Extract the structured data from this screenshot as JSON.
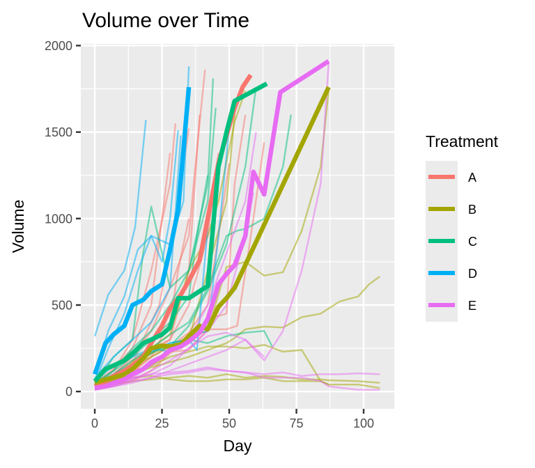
{
  "chart_data": {
    "type": "line",
    "title": "Volume over Time",
    "xlabel": "Day",
    "ylabel": "Volume",
    "xlim": [
      -5.2,
      111.4
    ],
    "ylim": [
      -100,
      2010
    ],
    "x_ticks": [
      0,
      25,
      50,
      75,
      100
    ],
    "x_tick_labels": [
      "0",
      "25",
      "50",
      "75",
      "100"
    ],
    "y_ticks": [
      0,
      500,
      1000,
      1500,
      2000
    ],
    "y_tick_labels": [
      "0",
      "500",
      "1000",
      "1500",
      "2000"
    ],
    "x_minor": [
      12.5,
      37.5,
      62.5,
      87.5
    ],
    "y_minor": [
      250,
      750,
      1250,
      1750
    ],
    "grid": true,
    "background": "#ebebeb",
    "legend": {
      "title": "Treatment",
      "position": "right",
      "entries": [
        {
          "label": "A",
          "color": "#F8766D"
        },
        {
          "label": "B",
          "color": "#A3A500"
        },
        {
          "label": "C",
          "color": "#00BF7D"
        },
        {
          "label": "D",
          "color": "#00B0F6"
        },
        {
          "label": "E",
          "color": "#E76BF3"
        }
      ]
    },
    "mean_series": [
      {
        "name": "A",
        "color": "#F8766D",
        "x": [
          0,
          4,
          7,
          11,
          14,
          18,
          21,
          25,
          28,
          32,
          35,
          39,
          42,
          46,
          49,
          52,
          55,
          58
        ],
        "y": [
          30,
          60,
          90,
          120,
          150,
          200,
          280,
          380,
          480,
          560,
          640,
          760,
          1000,
          1320,
          1480,
          1640,
          1760,
          1830
        ]
      },
      {
        "name": "B",
        "color": "#A3A500",
        "x": [
          0,
          4,
          7,
          11,
          14,
          18,
          21,
          25,
          28,
          32,
          35,
          39,
          42,
          46,
          49,
          52,
          87
        ],
        "y": [
          50,
          70,
          80,
          100,
          130,
          190,
          250,
          265,
          260,
          270,
          320,
          380,
          360,
          490,
          540,
          600,
          1760
        ]
      },
      {
        "name": "C",
        "color": "#00BF7D",
        "x": [
          0,
          4,
          7,
          11,
          14,
          18,
          21,
          25,
          28,
          31,
          35,
          39,
          42,
          46,
          49,
          52,
          64
        ],
        "y": [
          60,
          130,
          150,
          180,
          220,
          280,
          300,
          330,
          370,
          540,
          540,
          580,
          610,
          1300,
          1500,
          1680,
          1780
        ]
      },
      {
        "name": "D",
        "color": "#00B0F6",
        "x": [
          0,
          4,
          7,
          11,
          14,
          18,
          21,
          25,
          28,
          31,
          33,
          35
        ],
        "y": [
          100,
          280,
          330,
          380,
          500,
          530,
          580,
          620,
          820,
          1050,
          1400,
          1760
        ]
      },
      {
        "name": "E",
        "color": "#E76BF3",
        "x": [
          0,
          4,
          7,
          11,
          14,
          18,
          21,
          25,
          28,
          32,
          35,
          39,
          42,
          46,
          49,
          52,
          56,
          59,
          63,
          69,
          87
        ],
        "y": [
          20,
          30,
          50,
          70,
          100,
          130,
          170,
          200,
          240,
          260,
          290,
          340,
          420,
          620,
          680,
          730,
          900,
          1270,
          1140,
          1730,
          1910
        ]
      }
    ],
    "individual_series": [
      {
        "group": "A",
        "x": [
          0,
          7,
          14,
          21,
          28,
          30
        ],
        "y": [
          40,
          120,
          300,
          700,
          1200,
          1550
        ]
      },
      {
        "group": "A",
        "x": [
          0,
          7,
          14,
          18,
          24,
          30,
          35
        ],
        "y": [
          20,
          80,
          160,
          300,
          500,
          1000,
          1520
        ]
      },
      {
        "group": "A",
        "x": [
          0,
          7,
          14,
          21,
          28,
          35,
          38,
          41
        ],
        "y": [
          30,
          100,
          200,
          350,
          600,
          900,
          1400,
          1860
        ]
      },
      {
        "group": "A",
        "x": [
          0,
          7,
          14,
          21,
          25,
          28
        ],
        "y": [
          50,
          130,
          250,
          500,
          1000,
          1380
        ]
      },
      {
        "group": "A",
        "x": [
          0,
          7,
          14,
          21,
          28,
          35,
          42,
          46,
          50
        ],
        "y": [
          20,
          60,
          110,
          200,
          260,
          340,
          500,
          900,
          1320
        ]
      },
      {
        "group": "A",
        "x": [
          0,
          7,
          14,
          21,
          28,
          35,
          42,
          46
        ],
        "y": [
          30,
          90,
          150,
          220,
          300,
          500,
          900,
          1380
        ]
      },
      {
        "group": "A",
        "x": [
          0,
          7,
          14,
          21,
          28,
          35,
          42,
          49,
          53,
          59,
          63
        ],
        "y": [
          20,
          70,
          120,
          150,
          230,
          240,
          360,
          360,
          380,
          1000,
          1440
        ]
      },
      {
        "group": "A",
        "x": [
          0,
          7,
          14,
          21,
          28,
          35,
          39
        ],
        "y": [
          30,
          100,
          180,
          250,
          300,
          700,
          1600
        ]
      },
      {
        "group": "A",
        "x": [
          0,
          7,
          14,
          21,
          28,
          35,
          42,
          49,
          52,
          56
        ],
        "y": [
          10,
          40,
          60,
          120,
          220,
          300,
          420,
          450,
          1200,
          1600
        ]
      },
      {
        "group": "A",
        "x": [
          0,
          7,
          14,
          21,
          28,
          31,
          35
        ],
        "y": [
          20,
          60,
          120,
          200,
          400,
          700,
          1000
        ]
      },
      {
        "group": "B",
        "x": [
          0,
          7,
          14,
          21,
          28,
          35,
          42,
          49,
          56,
          63,
          70,
          77,
          84,
          87
        ],
        "y": [
          40,
          70,
          140,
          220,
          260,
          320,
          350,
          720,
          750,
          670,
          690,
          930,
          1300,
          1740
        ]
      },
      {
        "group": "B",
        "x": [
          0,
          7,
          14,
          21,
          28,
          35,
          42,
          49,
          52,
          56,
          63,
          70,
          77,
          84,
          91,
          98,
          102,
          106
        ],
        "y": [
          30,
          60,
          100,
          140,
          170,
          200,
          240,
          280,
          310,
          360,
          375,
          370,
          430,
          450,
          520,
          550,
          620,
          665
        ]
      },
      {
        "group": "B",
        "x": [
          0,
          7,
          14,
          21,
          28,
          35,
          42,
          49,
          56,
          63,
          70,
          77,
          84,
          87,
          98,
          106
        ],
        "y": [
          30,
          60,
          80,
          90,
          70,
          60,
          60,
          70,
          70,
          80,
          60,
          60,
          60,
          40,
          40,
          20
        ]
      },
      {
        "group": "B",
        "x": [
          0,
          7,
          14,
          21,
          28,
          35,
          42,
          49,
          56,
          63,
          70,
          77,
          84,
          87,
          98,
          106
        ],
        "y": [
          20,
          40,
          60,
          70,
          80,
          90,
          80,
          100,
          80,
          90,
          85,
          70,
          70,
          65,
          60,
          50
        ]
      },
      {
        "group": "B",
        "x": [
          0,
          7,
          14,
          21,
          28,
          35,
          42,
          49,
          56,
          63,
          70,
          77,
          84,
          87
        ],
        "y": [
          30,
          60,
          100,
          150,
          200,
          230,
          260,
          260,
          250,
          270,
          230,
          240,
          60,
          40
        ]
      },
      {
        "group": "B",
        "x": [
          0,
          7,
          14,
          21,
          28,
          35,
          42,
          46,
          52,
          56
        ],
        "y": [
          20,
          80,
          170,
          250,
          330,
          700,
          900,
          1100,
          1560,
          1740
        ]
      },
      {
        "group": "B",
        "x": [
          0,
          7,
          14,
          21,
          28,
          35,
          42,
          49,
          52
        ],
        "y": [
          40,
          100,
          150,
          200,
          260,
          300,
          700,
          1100,
          1600
        ]
      },
      {
        "group": "C",
        "x": [
          0,
          7,
          14,
          18,
          21,
          25,
          28,
          35,
          42,
          44
        ],
        "y": [
          40,
          200,
          300,
          800,
          1070,
          800,
          600,
          700,
          1200,
          1810
        ]
      },
      {
        "group": "C",
        "x": [
          0,
          7,
          14,
          21,
          28,
          35,
          42,
          45
        ],
        "y": [
          50,
          120,
          250,
          350,
          500,
          700,
          1100,
          1640
        ]
      },
      {
        "group": "C",
        "x": [
          0,
          7,
          14,
          21,
          28,
          35,
          42,
          49,
          53,
          56,
          63,
          70,
          73
        ],
        "y": [
          30,
          100,
          180,
          250,
          330,
          400,
          600,
          900,
          930,
          940,
          1000,
          1300,
          1600
        ]
      },
      {
        "group": "C",
        "x": [
          0,
          7,
          14,
          21,
          28,
          35,
          42,
          49,
          56,
          63,
          66
        ],
        "y": [
          40,
          100,
          160,
          220,
          280,
          300,
          280,
          320,
          340,
          350,
          260
        ]
      },
      {
        "group": "C",
        "x": [
          0,
          7,
          14,
          21,
          28,
          35,
          42,
          49,
          56,
          60
        ],
        "y": [
          30,
          80,
          160,
          230,
          260,
          380,
          580,
          850,
          1300,
          1760
        ]
      },
      {
        "group": "C",
        "x": [
          0,
          7,
          14,
          21,
          28,
          35,
          38,
          42
        ],
        "y": [
          40,
          120,
          200,
          300,
          400,
          550,
          900,
          1250
        ]
      },
      {
        "group": "D",
        "x": [
          0,
          5,
          11,
          15,
          19
        ],
        "y": [
          320,
          560,
          700,
          950,
          1570
        ]
      },
      {
        "group": "D",
        "x": [
          0,
          5,
          11,
          16,
          21,
          28,
          33,
          35
        ],
        "y": [
          100,
          350,
          550,
          820,
          900,
          850,
          1100,
          1880
        ]
      },
      {
        "group": "D",
        "x": [
          0,
          5,
          11,
          16,
          21,
          25,
          28,
          31
        ],
        "y": [
          50,
          250,
          450,
          700,
          900,
          750,
          1000,
          1510
        ]
      },
      {
        "group": "D",
        "x": [
          0,
          7,
          14,
          21,
          28,
          32
        ],
        "y": [
          80,
          200,
          300,
          400,
          600,
          1480
        ]
      },
      {
        "group": "D",
        "x": [
          0,
          7,
          14,
          21,
          28,
          35,
          42,
          46,
          50
        ],
        "y": [
          60,
          150,
          200,
          250,
          230,
          320,
          350,
          900,
          1520
        ]
      },
      {
        "group": "D",
        "x": [
          0,
          7,
          14,
          21,
          28,
          35,
          38,
          42
        ],
        "y": [
          40,
          100,
          150,
          230,
          280,
          300,
          240,
          950
        ]
      },
      {
        "group": "E",
        "x": [
          0,
          7,
          14,
          21,
          28,
          35,
          42,
          49,
          56,
          63,
          70,
          77,
          84,
          87
        ],
        "y": [
          10,
          30,
          60,
          80,
          120,
          160,
          200,
          240,
          300,
          180,
          350,
          700,
          1200,
          1900
        ]
      },
      {
        "group": "E",
        "x": [
          0,
          7,
          14,
          21,
          28,
          35,
          42,
          49,
          56,
          63,
          70,
          77,
          84,
          87,
          98,
          106
        ],
        "y": [
          20,
          50,
          80,
          100,
          110,
          120,
          140,
          120,
          110,
          80,
          80,
          80,
          60,
          30,
          10,
          10
        ]
      },
      {
        "group": "E",
        "x": [
          0,
          7,
          14,
          21,
          28,
          35,
          42,
          49,
          56,
          63,
          70,
          77,
          84,
          91,
          98,
          106
        ],
        "y": [
          10,
          30,
          50,
          80,
          100,
          110,
          130,
          120,
          110,
          100,
          110,
          90,
          100,
          100,
          105,
          100
        ]
      },
      {
        "group": "E",
        "x": [
          0,
          7,
          14,
          21,
          28,
          35,
          42,
          49,
          56,
          60
        ],
        "y": [
          20,
          40,
          80,
          150,
          230,
          300,
          500,
          800,
          1100,
          1500
        ]
      },
      {
        "group": "E",
        "x": [
          0,
          7,
          14,
          21,
          28,
          35,
          42,
          49,
          56,
          59
        ],
        "y": [
          10,
          30,
          70,
          120,
          180,
          250,
          350,
          500,
          900,
          1150
        ]
      },
      {
        "group": "E",
        "x": [
          0,
          7,
          14,
          21,
          28,
          35,
          42,
          49,
          56,
          63
        ],
        "y": [
          20,
          40,
          70,
          100,
          150,
          250,
          320,
          340,
          300,
          200
        ]
      }
    ]
  }
}
